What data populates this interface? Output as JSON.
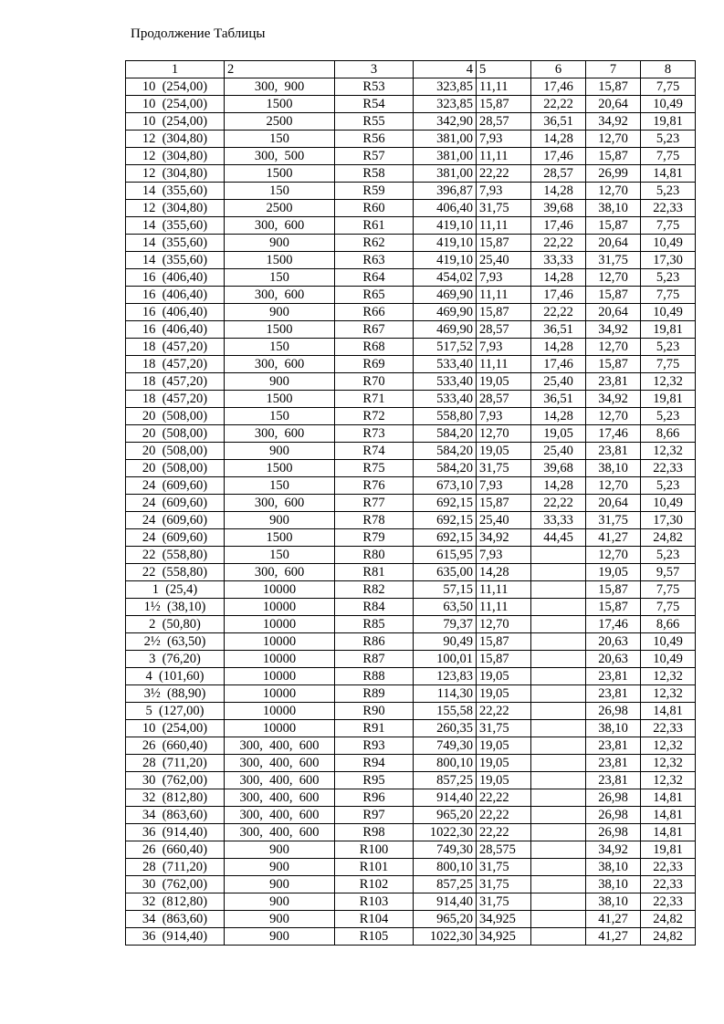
{
  "title": "Продолжение Таблицы",
  "headers": [
    "1",
    "2",
    "3",
    "4",
    "5",
    "6",
    "7",
    "8"
  ],
  "rows": [
    [
      "10  (254,00)",
      "300,  900",
      "R53",
      "323,85",
      "11,11",
      "17,46",
      "15,87",
      "7,75"
    ],
    [
      "10  (254,00)",
      "1500",
      "R54",
      "323,85",
      "15,87",
      "22,22",
      "20,64",
      "10,49"
    ],
    [
      "10  (254,00)",
      "2500",
      "R55",
      "342,90",
      "28,57",
      "36,51",
      "34,92",
      "19,81"
    ],
    [
      "12  (304,80)",
      "150",
      "R56",
      "381,00",
      "7,93",
      "14,28",
      "12,70",
      "5,23"
    ],
    [
      "12  (304,80)",
      "300,  500",
      "R57",
      "381,00",
      "11,11",
      "17,46",
      "15,87",
      "7,75"
    ],
    [
      "12  (304,80)",
      "1500",
      "R58",
      "381,00",
      "22,22",
      "28,57",
      "26,99",
      "14,81"
    ],
    [
      "14  (355,60)",
      "150",
      "R59",
      "396,87",
      "7,93",
      "14,28",
      "12,70",
      "5,23"
    ],
    [
      "12  (304,80)",
      "2500",
      "R60",
      "406,40",
      "31,75",
      "39,68",
      "38,10",
      "22,33"
    ],
    [
      "14  (355,60)",
      "300,  600",
      "R61",
      "419,10",
      "11,11",
      "17,46",
      "15,87",
      "7,75"
    ],
    [
      "14  (355,60)",
      "900",
      "R62",
      "419,10",
      "15,87",
      "22,22",
      "20,64",
      "10,49"
    ],
    [
      "14  (355,60)",
      "1500",
      "R63",
      "419,10",
      "25,40",
      "33,33",
      "31,75",
      "17,30"
    ],
    [
      "16  (406,40)",
      "150",
      "R64",
      "454,02",
      "7,93",
      "14,28",
      "12,70",
      "5,23"
    ],
    [
      "16  (406,40)",
      "300,  600",
      "R65",
      "469,90",
      "11,11",
      "17,46",
      "15,87",
      "7,75"
    ],
    [
      "16  (406,40)",
      "900",
      "R66",
      "469,90",
      "15,87",
      "22,22",
      "20,64",
      "10,49"
    ],
    [
      "16  (406,40)",
      "1500",
      "R67",
      "469,90",
      "28,57",
      "36,51",
      "34,92",
      "19,81"
    ],
    [
      "18  (457,20)",
      "150",
      "R68",
      "517,52",
      "7,93",
      "14,28",
      "12,70",
      "5,23"
    ],
    [
      "18  (457,20)",
      "300,  600",
      "R69",
      "533,40",
      "11,11",
      "17,46",
      "15,87",
      "7,75"
    ],
    [
      "18  (457,20)",
      "900",
      "R70",
      "533,40",
      "19,05",
      "25,40",
      "23,81",
      "12,32"
    ],
    [
      "18  (457,20)",
      "1500",
      "R71",
      "533,40",
      "28,57",
      "36,51",
      "34,92",
      "19,81"
    ],
    [
      "20  (508,00)",
      "150",
      "R72",
      "558,80",
      "7,93",
      "14,28",
      "12,70",
      "5,23"
    ],
    [
      "20  (508,00)",
      "300,  600",
      "R73",
      "584,20",
      "12,70",
      "19,05",
      "17,46",
      "8,66"
    ],
    [
      "20  (508,00)",
      "900",
      "R74",
      "584,20",
      "19,05",
      "25,40",
      "23,81",
      "12,32"
    ],
    [
      "20  (508,00)",
      "1500",
      "R75",
      "584,20",
      "31,75",
      "39,68",
      "38,10",
      "22,33"
    ],
    [
      "24  (609,60)",
      "150",
      "R76",
      "673,10",
      "7,93",
      "14,28",
      "12,70",
      "5,23"
    ],
    [
      "24  (609,60)",
      "300,  600",
      "R77",
      "692,15",
      "15,87",
      "22,22",
      "20,64",
      "10,49"
    ],
    [
      "24  (609,60)",
      "900",
      "R78",
      "692,15",
      "25,40",
      "33,33",
      "31,75",
      "17,30"
    ],
    [
      "24  (609,60)",
      "1500",
      "R79",
      "692,15",
      "34,92",
      "44,45",
      "41,27",
      "24,82"
    ],
    [
      "22  (558,80)",
      "150",
      "R80",
      "615,95",
      "7,93",
      "",
      "12,70",
      "5,23"
    ],
    [
      "22  (558,80)",
      "300,  600",
      "R81",
      "635,00",
      "14,28",
      "",
      "19,05",
      "9,57"
    ],
    [
      "1  (25,4)",
      "10000",
      "R82",
      "57,15",
      "11,11",
      "",
      "15,87",
      "7,75"
    ],
    [
      "1½  (38,10)",
      "10000",
      "R84",
      "63,50",
      "11,11",
      "",
      "15,87",
      "7,75"
    ],
    [
      "2  (50,80)",
      "10000",
      "R85",
      "79,37",
      "12,70",
      "",
      "17,46",
      "8,66"
    ],
    [
      "2½  (63,50)",
      "10000",
      "R86",
      "90,49",
      "15,87",
      "",
      "20,63",
      "10,49"
    ],
    [
      "3  (76,20)",
      "10000",
      "R87",
      "100,01",
      "15,87",
      "",
      "20,63",
      "10,49"
    ],
    [
      "4  (101,60)",
      "10000",
      "R88",
      "123,83",
      "19,05",
      "",
      "23,81",
      "12,32"
    ],
    [
      "3½  (88,90)",
      "10000",
      "R89",
      "114,30",
      "19,05",
      "",
      "23,81",
      "12,32"
    ],
    [
      "5  (127,00)",
      "10000",
      "R90",
      "155,58",
      "22,22",
      "",
      "26,98",
      "14,81"
    ],
    [
      "10  (254,00)",
      "10000",
      "R91",
      "260,35",
      "31,75",
      "",
      "38,10",
      "22,33"
    ],
    [
      "26  (660,40)",
      "300,  400,  600",
      "R93",
      "749,30",
      "19,05",
      "",
      "23,81",
      "12,32"
    ],
    [
      "28  (711,20)",
      "300,  400,  600",
      "R94",
      "800,10",
      "19,05",
      "",
      "23,81",
      "12,32"
    ],
    [
      "30  (762,00)",
      "300,  400,  600",
      "R95",
      "857,25",
      "19,05",
      "",
      "23,81",
      "12,32"
    ],
    [
      "32  (812,80)",
      "300,  400,  600",
      "R96",
      "914,40",
      "22,22",
      "",
      "26,98",
      "14,81"
    ],
    [
      "34  (863,60)",
      "300,  400,  600",
      "R97",
      "965,20",
      "22,22",
      "",
      "26,98",
      "14,81"
    ],
    [
      "36  (914,40)",
      "300,  400,  600",
      "R98",
      "1022,30",
      "22,22",
      "",
      "26,98",
      "14,81"
    ],
    [
      "26  (660,40)",
      "900",
      "R100",
      "749,30",
      "28,575",
      "",
      "34,92",
      "19,81"
    ],
    [
      "28  (711,20)",
      "900",
      "R101",
      "800,10",
      "31,75",
      "",
      "38,10",
      "22,33"
    ],
    [
      "30  (762,00)",
      "900",
      "R102",
      "857,25",
      "31,75",
      "",
      "38,10",
      "22,33"
    ],
    [
      "32  (812,80)",
      "900",
      "R103",
      "914,40",
      "31,75",
      "",
      "38,10",
      "22,33"
    ],
    [
      "34  (863,60)",
      "900",
      "R104",
      "965,20",
      "34,925",
      "",
      "41,27",
      "24,82"
    ],
    [
      "36  (914,40)",
      "900",
      "R105",
      "1022,30",
      "34,925",
      "",
      "41,27",
      "24,82"
    ]
  ]
}
